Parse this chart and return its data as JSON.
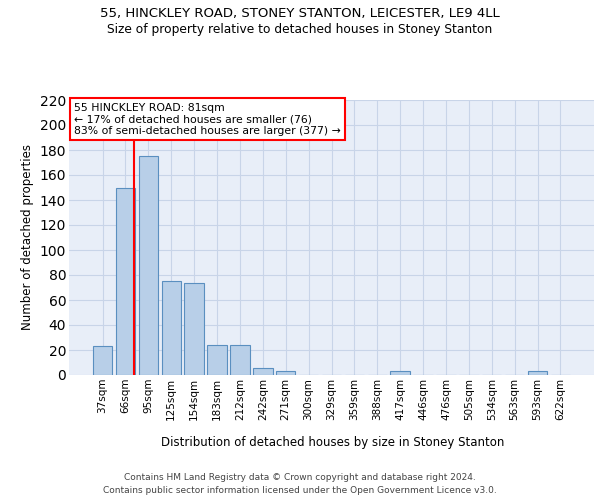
{
  "title1": "55, HINCKLEY ROAD, STONEY STANTON, LEICESTER, LE9 4LL",
  "title2": "Size of property relative to detached houses in Stoney Stanton",
  "xlabel": "Distribution of detached houses by size in Stoney Stanton",
  "ylabel": "Number of detached properties",
  "footnote": "Contains HM Land Registry data © Crown copyright and database right 2024.\nContains public sector information licensed under the Open Government Licence v3.0.",
  "bin_labels": [
    "37sqm",
    "66sqm",
    "95sqm",
    "125sqm",
    "154sqm",
    "183sqm",
    "212sqm",
    "242sqm",
    "271sqm",
    "300sqm",
    "329sqm",
    "359sqm",
    "388sqm",
    "417sqm",
    "446sqm",
    "476sqm",
    "505sqm",
    "534sqm",
    "563sqm",
    "593sqm",
    "622sqm"
  ],
  "bar_values": [
    23,
    150,
    175,
    75,
    74,
    24,
    24,
    6,
    3,
    0,
    0,
    0,
    0,
    3,
    0,
    0,
    0,
    0,
    0,
    3,
    0
  ],
  "bar_color": "#b8cfe8",
  "bar_edge_color": "#5a8fc0",
  "grid_color": "#c8d4e8",
  "background_color": "#e8eef8",
  "red_line_x": 1.37,
  "annotation_text": "55 HINCKLEY ROAD: 81sqm\n← 17% of detached houses are smaller (76)\n83% of semi-detached houses are larger (377) →",
  "ylim": [
    0,
    220
  ],
  "yticks": [
    0,
    20,
    40,
    60,
    80,
    100,
    120,
    140,
    160,
    180,
    200,
    220
  ]
}
